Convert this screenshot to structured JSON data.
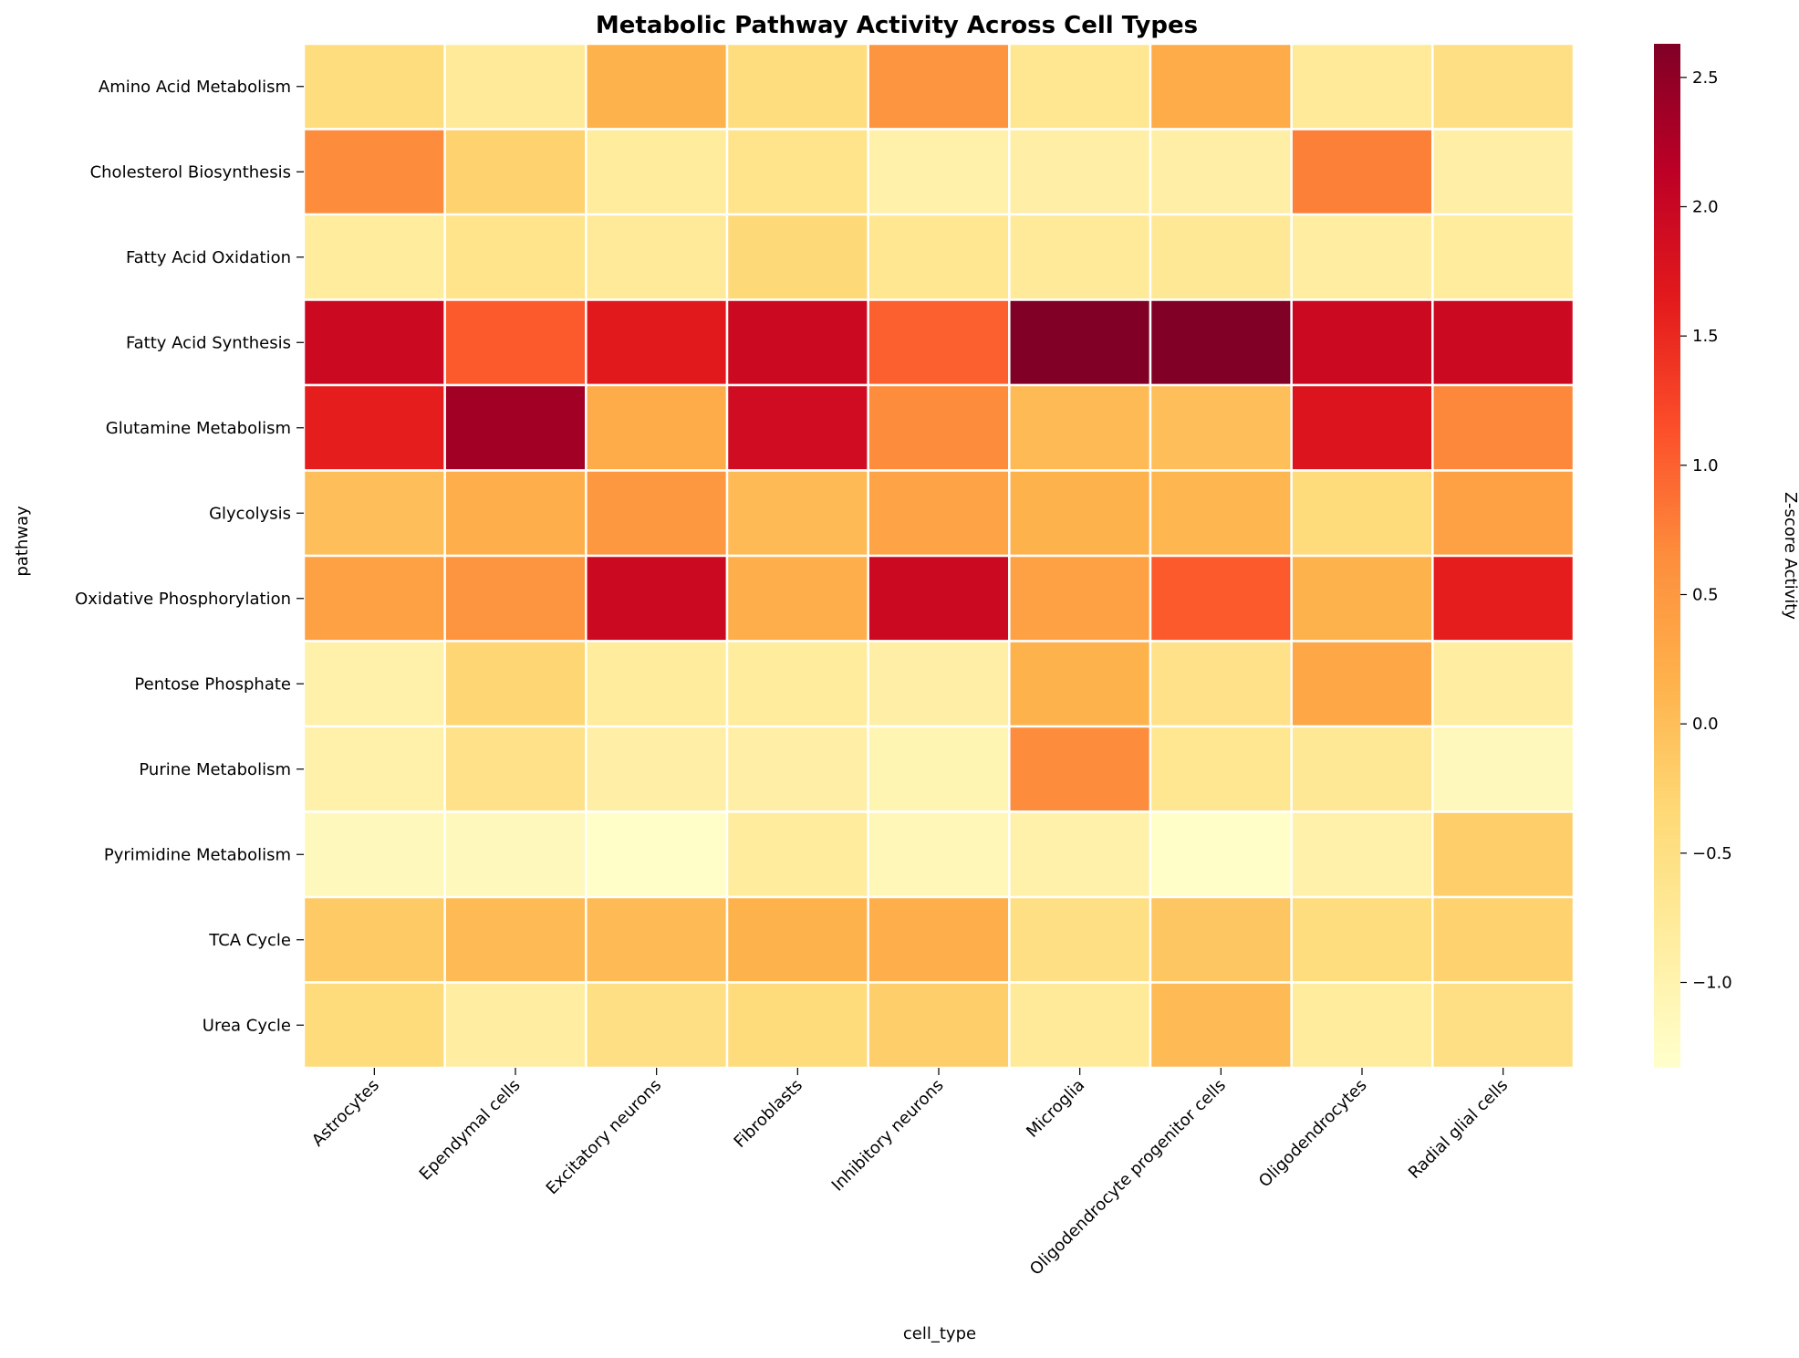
{
  "chart_data": {
    "type": "heatmap",
    "title": "Metabolic Pathway Activity Across Cell Types",
    "xlabel": "cell_type",
    "ylabel": "pathway",
    "colorbar_label": "Z-score Activity",
    "colormap": "YlOrRd",
    "color_range": [
      -1.33,
      2.63
    ],
    "colorbar_ticks": [
      "2.5",
      "2.0",
      "1.5",
      "1.0",
      "0.5",
      "0.0",
      "−0.5",
      "−1.0"
    ],
    "colorbar_tick_values": [
      2.5,
      2.0,
      1.5,
      1.0,
      0.5,
      0.0,
      -0.5,
      -1.0
    ],
    "grid": true,
    "legend": "colorbar-right",
    "x_categories": [
      "Astrocytes",
      "Ependymal cells",
      "Excitatory neurons",
      "Fibroblasts",
      "Inhibitory neurons",
      "Microglia",
      "Oligodendrocyte progenitor cells",
      "Oligodendrocytes",
      "Radial glial cells"
    ],
    "y_categories": [
      "Amino Acid Metabolism",
      "Cholesterol Biosynthesis",
      "Fatty Acid Oxidation",
      "Fatty Acid Synthesis",
      "Glutamine Metabolism",
      "Glycolysis",
      "Oxidative Phosphorylation",
      "Pentose Phosphate",
      "Purine Metabolism",
      "Pyrimidine Metabolism",
      "TCA Cycle",
      "Urea Cycle"
    ],
    "values": [
      [
        -0.45,
        -0.75,
        0.15,
        -0.45,
        0.55,
        -0.65,
        0.25,
        -0.75,
        -0.5
      ],
      [
        0.65,
        -0.25,
        -0.8,
        -0.6,
        -0.95,
        -0.9,
        -0.9,
        0.75,
        -0.9
      ],
      [
        -0.8,
        -0.6,
        -0.75,
        -0.35,
        -0.65,
        -0.75,
        -0.7,
        -0.85,
        -0.8
      ],
      [
        1.95,
        1.05,
        1.65,
        1.95,
        1.0,
        2.63,
        2.63,
        1.95,
        1.95
      ],
      [
        1.6,
        2.35,
        0.25,
        1.9,
        0.65,
        0.05,
        0.0,
        1.75,
        0.7
      ],
      [
        0.0,
        0.2,
        0.5,
        0.05,
        0.35,
        0.15,
        0.1,
        -0.4,
        0.4
      ],
      [
        0.4,
        0.55,
        1.95,
        0.2,
        1.95,
        0.4,
        1.05,
        0.15,
        1.6
      ],
      [
        -0.95,
        -0.3,
        -0.8,
        -0.8,
        -0.9,
        0.15,
        -0.55,
        0.3,
        -0.85
      ],
      [
        -0.95,
        -0.55,
        -0.9,
        -0.9,
        -1.05,
        0.65,
        -0.65,
        -0.7,
        -1.15
      ],
      [
        -1.15,
        -1.15,
        -1.3,
        -0.8,
        -1.1,
        -0.95,
        -1.3,
        -0.95,
        -0.2
      ],
      [
        -0.15,
        0.05,
        0.05,
        0.15,
        0.2,
        -0.5,
        -0.1,
        -0.45,
        -0.25
      ],
      [
        -0.4,
        -0.85,
        -0.5,
        -0.4,
        -0.2,
        -0.75,
        0.05,
        -0.8,
        -0.5
      ]
    ]
  }
}
